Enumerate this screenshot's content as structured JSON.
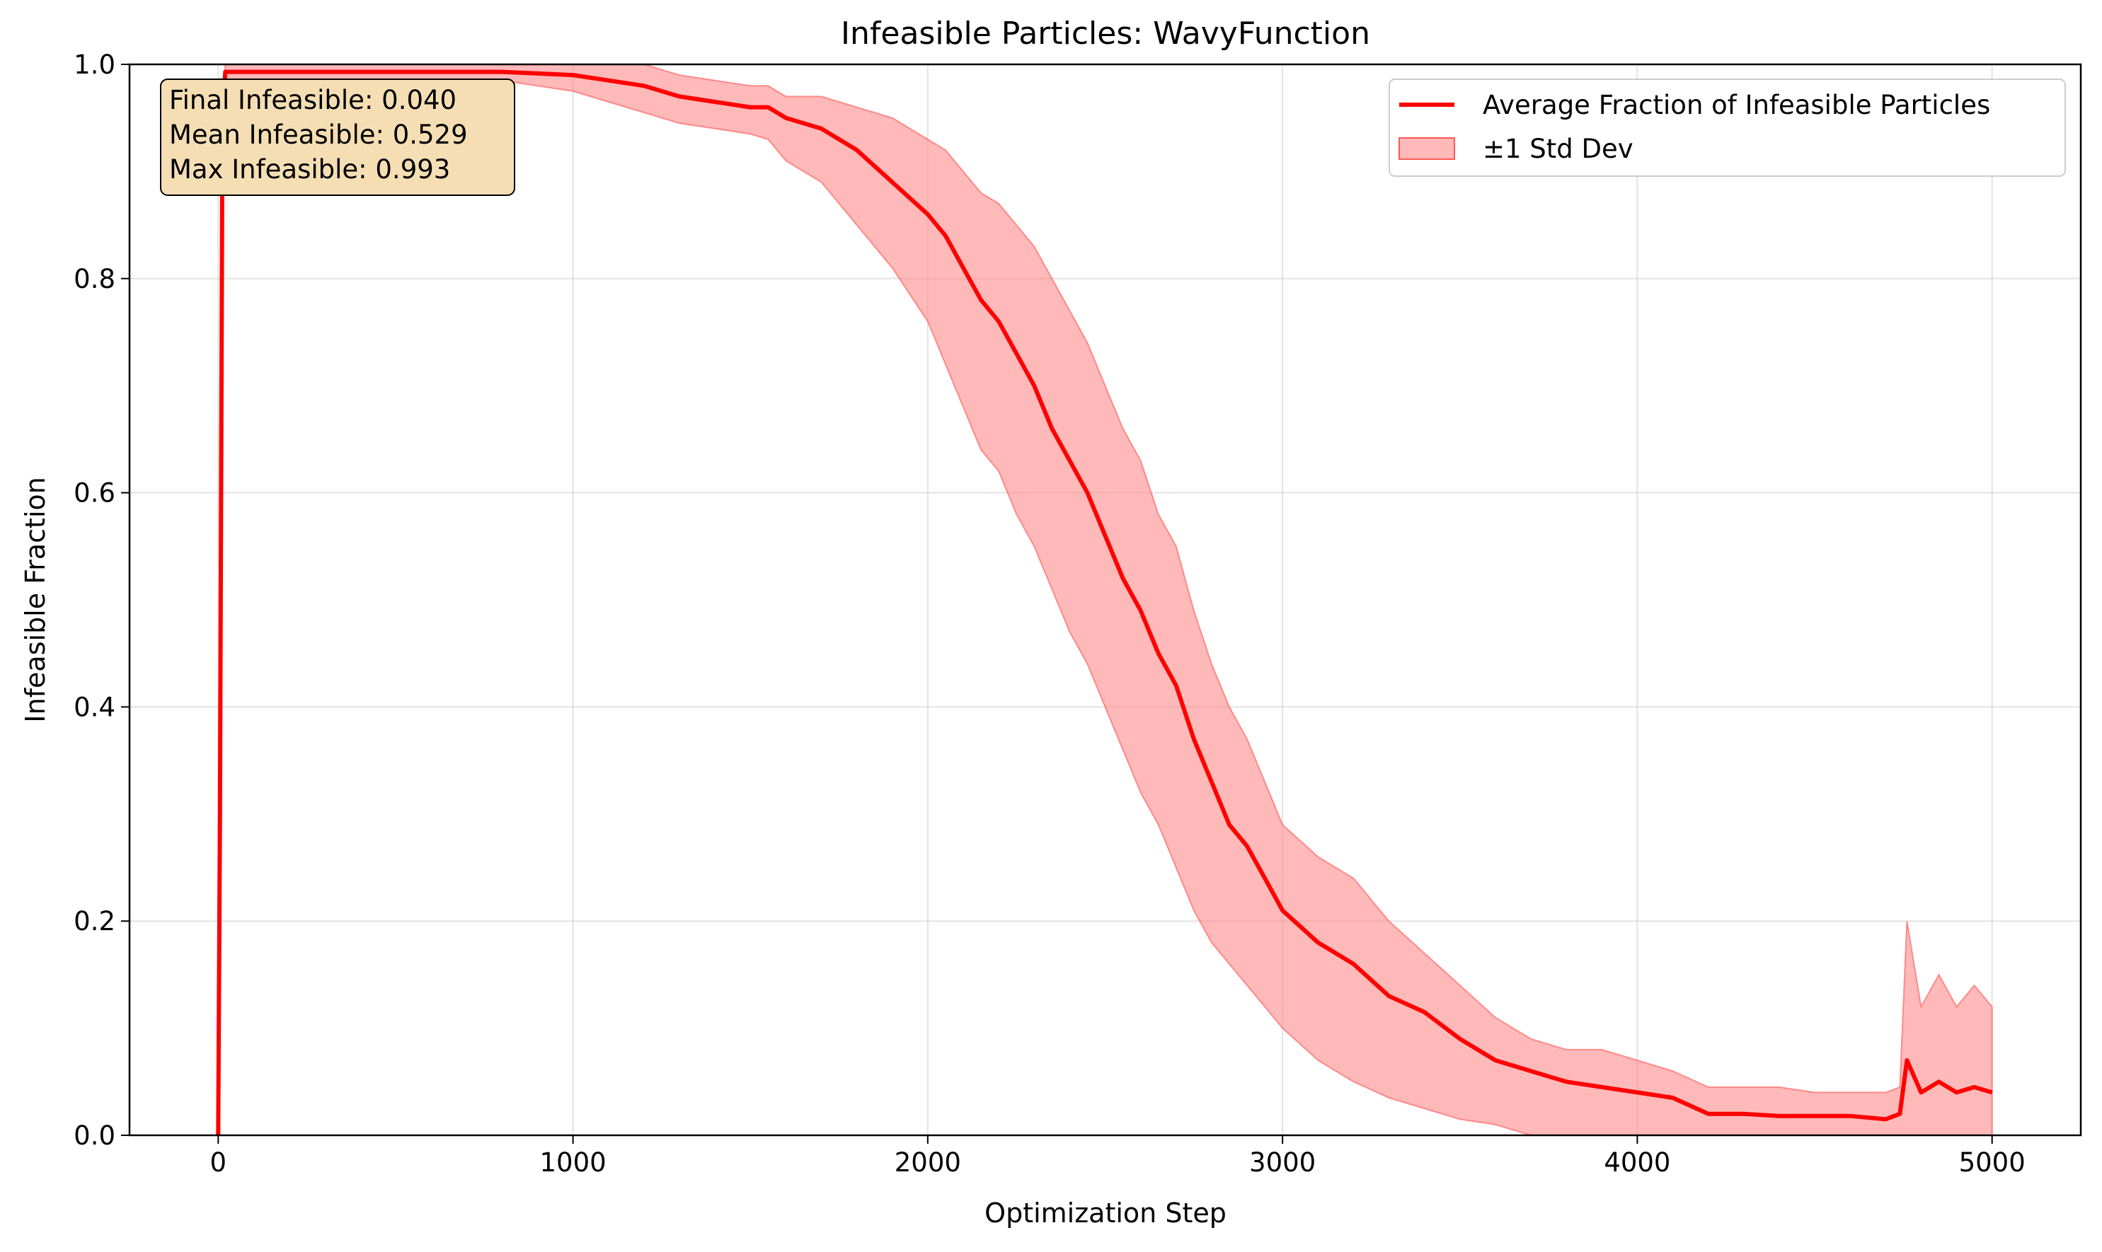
{
  "chart_data": {
    "type": "line",
    "title": "Infeasible Particles: WavyFunction",
    "xlabel": "Optimization Step",
    "ylabel": "Infeasible Fraction",
    "xlim": [
      -250,
      5250
    ],
    "ylim": [
      0.0,
      1.0
    ],
    "x_ticks": [
      0,
      1000,
      2000,
      3000,
      4000,
      5000
    ],
    "y_ticks": [
      0.0,
      0.2,
      0.4,
      0.6,
      0.8,
      1.0
    ],
    "x_tick_labels": [
      "0",
      "1000",
      "2000",
      "3000",
      "4000",
      "5000"
    ],
    "y_tick_labels": [
      "0.0",
      "0.2",
      "0.4",
      "0.6",
      "0.8",
      "1.0"
    ],
    "grid": true,
    "legend_position": "top-right",
    "legend": [
      {
        "label": "Average Fraction of Infeasible Particles",
        "kind": "line",
        "color": "#ff0000"
      },
      {
        "label": "±1 Std Dev",
        "kind": "band",
        "color": "#ff8a8a"
      }
    ],
    "annotation_lines": [
      "Final Infeasible: 0.040",
      "Mean Infeasible: 0.529",
      "Max Infeasible: 0.993"
    ],
    "series": [
      {
        "name": "Average Fraction of Infeasible Particles",
        "color": "#ff0000",
        "x": [
          0,
          5,
          12,
          20,
          200,
          400,
          600,
          800,
          1000,
          1100,
          1200,
          1300,
          1400,
          1500,
          1550,
          1600,
          1700,
          1800,
          1900,
          2000,
          2050,
          2100,
          2150,
          2200,
          2250,
          2300,
          2350,
          2400,
          2450,
          2500,
          2550,
          2600,
          2650,
          2700,
          2750,
          2800,
          2850,
          2900,
          2950,
          3000,
          3100,
          3200,
          3300,
          3400,
          3500,
          3600,
          3700,
          3800,
          3900,
          4000,
          4100,
          4200,
          4300,
          4400,
          4500,
          4600,
          4700,
          4740,
          4760,
          4800,
          4850,
          4900,
          4950,
          5000
        ],
        "y": [
          0.0,
          0.3,
          0.95,
          0.993,
          0.993,
          0.993,
          0.993,
          0.993,
          0.99,
          0.985,
          0.98,
          0.97,
          0.965,
          0.96,
          0.96,
          0.95,
          0.94,
          0.92,
          0.89,
          0.86,
          0.84,
          0.81,
          0.78,
          0.76,
          0.73,
          0.7,
          0.66,
          0.63,
          0.6,
          0.56,
          0.52,
          0.49,
          0.45,
          0.42,
          0.37,
          0.33,
          0.29,
          0.27,
          0.24,
          0.21,
          0.18,
          0.16,
          0.13,
          0.115,
          0.09,
          0.07,
          0.06,
          0.05,
          0.045,
          0.04,
          0.035,
          0.02,
          0.02,
          0.018,
          0.018,
          0.018,
          0.015,
          0.02,
          0.07,
          0.04,
          0.05,
          0.04,
          0.045,
          0.04
        ]
      }
    ],
    "band": {
      "name": "±1 Std Dev",
      "color": "#ff8a8a",
      "x": [
        0,
        5,
        12,
        20,
        200,
        400,
        600,
        800,
        1000,
        1100,
        1200,
        1300,
        1400,
        1500,
        1550,
        1600,
        1700,
        1800,
        1900,
        2000,
        2050,
        2100,
        2150,
        2200,
        2250,
        2300,
        2350,
        2400,
        2450,
        2500,
        2550,
        2600,
        2650,
        2700,
        2750,
        2800,
        2850,
        2900,
        2950,
        3000,
        3100,
        3200,
        3300,
        3400,
        3500,
        3600,
        3700,
        3800,
        3900,
        4000,
        4100,
        4200,
        4300,
        4400,
        4500,
        4600,
        4700,
        4740,
        4760,
        4800,
        4850,
        4900,
        4950,
        5000
      ],
      "lower": [
        0.0,
        0.3,
        0.95,
        0.985,
        0.985,
        0.985,
        0.985,
        0.985,
        0.975,
        0.965,
        0.955,
        0.945,
        0.94,
        0.935,
        0.93,
        0.91,
        0.89,
        0.85,
        0.81,
        0.76,
        0.72,
        0.68,
        0.64,
        0.62,
        0.58,
        0.55,
        0.51,
        0.47,
        0.44,
        0.4,
        0.36,
        0.32,
        0.29,
        0.25,
        0.21,
        0.18,
        0.16,
        0.14,
        0.12,
        0.1,
        0.07,
        0.05,
        0.035,
        0.025,
        0.015,
        0.01,
        0.0,
        0.0,
        0.0,
        0.0,
        0.0,
        0.0,
        0.0,
        0.0,
        0.0,
        0.0,
        0.0,
        0.0,
        0.0,
        0.0,
        0.0,
        0.0,
        0.0,
        0.0
      ],
      "upper": [
        0.0,
        0.3,
        0.95,
        1.0,
        1.0,
        1.0,
        1.0,
        1.0,
        1.0,
        1.0,
        1.0,
        0.99,
        0.985,
        0.98,
        0.98,
        0.97,
        0.97,
        0.96,
        0.95,
        0.93,
        0.92,
        0.9,
        0.88,
        0.87,
        0.85,
        0.83,
        0.8,
        0.77,
        0.74,
        0.7,
        0.66,
        0.63,
        0.58,
        0.55,
        0.49,
        0.44,
        0.4,
        0.37,
        0.33,
        0.29,
        0.26,
        0.24,
        0.2,
        0.17,
        0.14,
        0.11,
        0.09,
        0.08,
        0.08,
        0.07,
        0.06,
        0.045,
        0.045,
        0.045,
        0.04,
        0.04,
        0.04,
        0.045,
        0.2,
        0.12,
        0.15,
        0.12,
        0.14,
        0.12
      ]
    }
  }
}
